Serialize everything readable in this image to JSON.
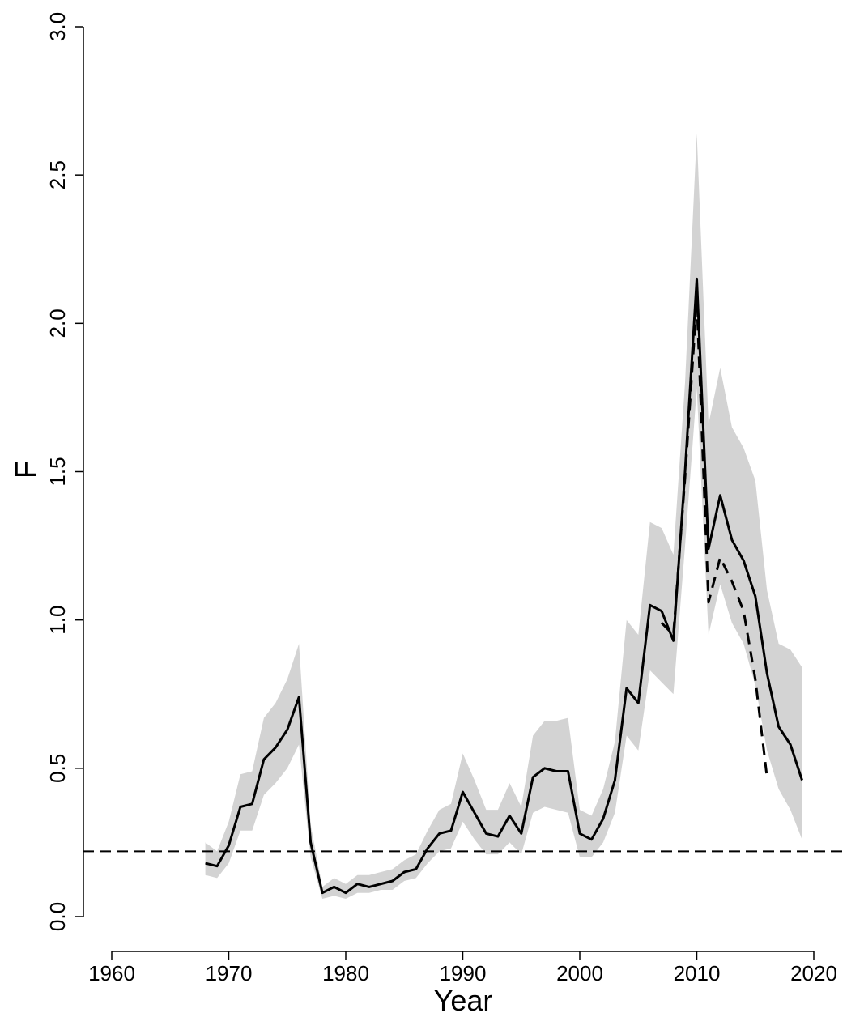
{
  "chart_data": {
    "type": "line",
    "xlabel": "Year",
    "ylabel": "F",
    "xlim": [
      1960,
      2022
    ],
    "ylim": [
      0,
      3
    ],
    "x_ticks": [
      1960,
      1970,
      1980,
      1990,
      2000,
      2010,
      2020
    ],
    "y_ticks": [
      0.0,
      0.5,
      1.0,
      1.5,
      2.0,
      2.5,
      3.0
    ],
    "x_tick_labels": [
      "1960",
      "1970",
      "1980",
      "1990",
      "2000",
      "2010",
      "2020"
    ],
    "y_tick_labels": [
      "0.0",
      "0.5",
      "1.0",
      "1.5",
      "2.0",
      "2.5",
      "3.0"
    ],
    "grid": false,
    "reference_line": {
      "y": 0.22,
      "style": "dashed"
    },
    "colors": {
      "band": "#d3d3d3",
      "line": "#000000"
    },
    "series": [
      {
        "style": "solid",
        "x": [
          1968,
          1969,
          1970,
          1971,
          1972,
          1973,
          1974,
          1975,
          1976,
          1977,
          1978,
          1979,
          1980,
          1981,
          1982,
          1983,
          1984,
          1985,
          1986,
          1987,
          1988,
          1989,
          1990,
          1991,
          1992,
          1993,
          1994,
          1995,
          1996,
          1997,
          1998,
          1999,
          2000,
          2001,
          2002,
          2003,
          2004,
          2005,
          2006,
          2007,
          2008,
          2009,
          2010,
          2011,
          2012,
          2013,
          2014,
          2015,
          2016,
          2017,
          2018,
          2019
        ],
        "y": [
          0.18,
          0.17,
          0.24,
          0.37,
          0.38,
          0.53,
          0.57,
          0.63,
          0.74,
          0.25,
          0.08,
          0.1,
          0.08,
          0.11,
          0.1,
          0.11,
          0.12,
          0.15,
          0.16,
          0.23,
          0.28,
          0.29,
          0.42,
          0.35,
          0.28,
          0.27,
          0.34,
          0.28,
          0.47,
          0.5,
          0.49,
          0.49,
          0.28,
          0.26,
          0.33,
          0.46,
          0.77,
          0.72,
          1.05,
          1.03,
          0.93,
          1.5,
          2.15,
          1.24,
          1.42,
          1.27,
          1.2,
          1.08,
          0.82,
          0.64,
          0.58,
          0.46
        ]
      },
      {
        "style": "dashed",
        "x": [
          2007,
          2008,
          2009,
          2010,
          2011,
          2012,
          2013,
          2014,
          2015,
          2016
        ],
        "y": [
          0.99,
          0.95,
          1.48,
          2.08,
          1.06,
          1.21,
          1.13,
          1.03,
          0.8,
          0.47
        ]
      }
    ],
    "confidence_band": {
      "x": [
        1968,
        1969,
        1970,
        1971,
        1972,
        1973,
        1974,
        1975,
        1976,
        1977,
        1978,
        1979,
        1980,
        1981,
        1982,
        1983,
        1984,
        1985,
        1986,
        1987,
        1988,
        1989,
        1990,
        1991,
        1992,
        1993,
        1994,
        1995,
        1996,
        1997,
        1998,
        1999,
        2000,
        2001,
        2002,
        2003,
        2004,
        2005,
        2006,
        2007,
        2008,
        2009,
        2010,
        2011,
        2012,
        2013,
        2014,
        2015,
        2016,
        2017,
        2018,
        2019
      ],
      "lower": [
        0.14,
        0.13,
        0.18,
        0.29,
        0.29,
        0.41,
        0.45,
        0.5,
        0.58,
        0.2,
        0.06,
        0.07,
        0.06,
        0.08,
        0.08,
        0.09,
        0.09,
        0.12,
        0.13,
        0.18,
        0.22,
        0.23,
        0.32,
        0.26,
        0.21,
        0.21,
        0.25,
        0.21,
        0.35,
        0.37,
        0.36,
        0.35,
        0.2,
        0.2,
        0.25,
        0.35,
        0.61,
        0.56,
        0.83,
        0.79,
        0.75,
        1.25,
        1.78,
        0.95,
        1.12,
        0.99,
        0.92,
        0.78,
        0.56,
        0.43,
        0.36,
        0.26
      ],
      "upper": [
        0.25,
        0.22,
        0.32,
        0.48,
        0.49,
        0.67,
        0.72,
        0.8,
        0.92,
        0.31,
        0.1,
        0.13,
        0.11,
        0.14,
        0.14,
        0.15,
        0.16,
        0.19,
        0.21,
        0.29,
        0.36,
        0.38,
        0.55,
        0.46,
        0.36,
        0.36,
        0.45,
        0.37,
        0.61,
        0.66,
        0.66,
        0.67,
        0.36,
        0.34,
        0.43,
        0.59,
        1.0,
        0.95,
        1.33,
        1.31,
        1.22,
        1.8,
        2.64,
        1.66,
        1.85,
        1.65,
        1.58,
        1.47,
        1.1,
        0.92,
        0.9,
        0.84
      ]
    }
  }
}
